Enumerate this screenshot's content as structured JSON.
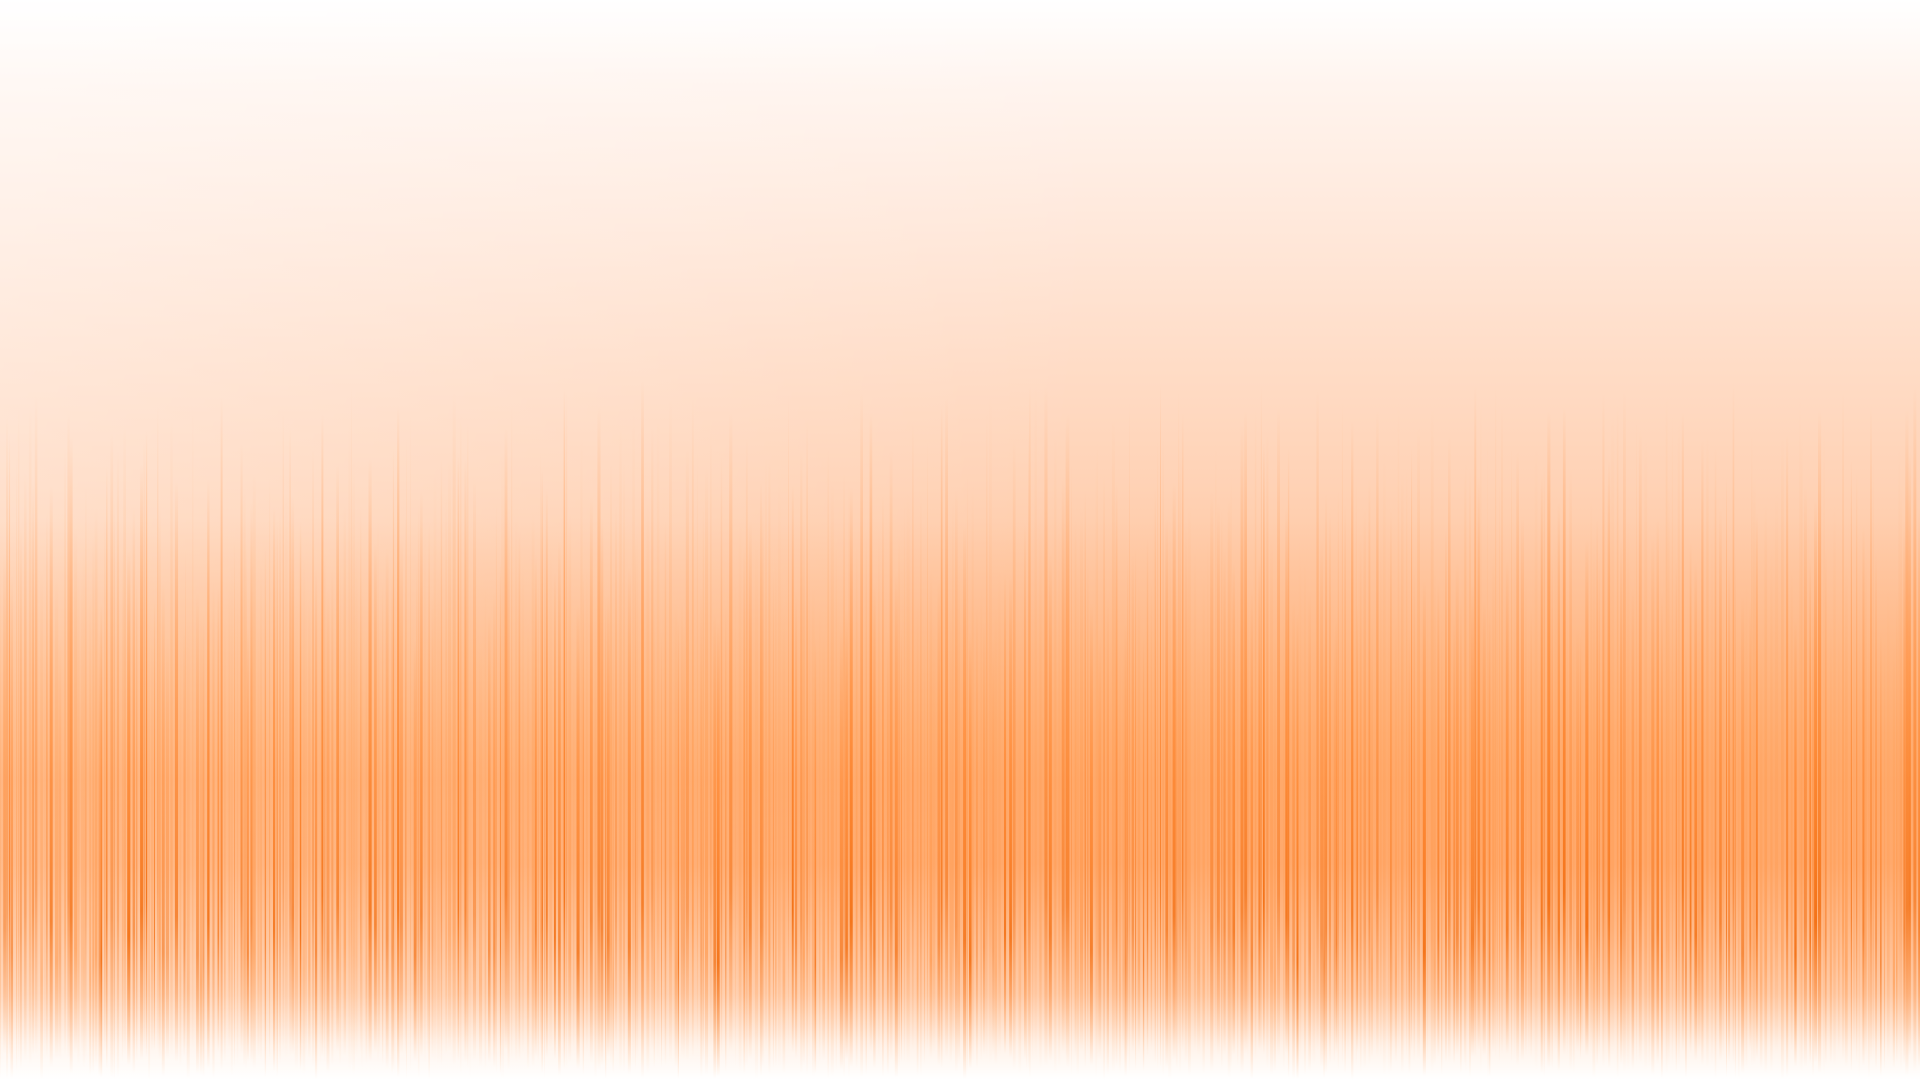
{
  "desktop": {
    "background": {
      "description_colors": {
        "top": "#ffffff",
        "mid": "#ffd2b5",
        "streak": "#ff7a1a",
        "streak_dark": "#f26a0a",
        "bottom": "#ffffff"
      }
    }
  }
}
